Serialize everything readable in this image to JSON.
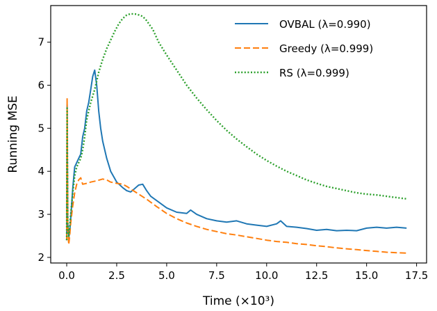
{
  "chart_data": {
    "type": "line",
    "xlabel": "Time (×10³)",
    "ylabel": "Running MSE",
    "xlim": [
      -0.8,
      18.0
    ],
    "ylim": [
      1.87,
      7.85
    ],
    "xticks": [
      "0.0",
      "2.5",
      "5.0",
      "7.5",
      "10.0",
      "12.5",
      "15.0",
      "17.5"
    ],
    "xtick_values": [
      0.0,
      2.5,
      5.0,
      7.5,
      10.0,
      12.5,
      15.0,
      17.5
    ],
    "yticks": [
      "2",
      "3",
      "4",
      "5",
      "6",
      "7"
    ],
    "ytick_values": [
      2,
      3,
      4,
      5,
      6,
      7
    ],
    "grid": false,
    "legend_position": "top-right",
    "series": [
      {
        "name": "OVBAL (λ=0.990)",
        "color": "#1f77b4",
        "dash": "solid",
        "x": [
          0.0,
          0.02,
          0.05,
          0.1,
          0.15,
          0.2,
          0.3,
          0.4,
          0.5,
          0.6,
          0.7,
          0.8,
          0.9,
          1.0,
          1.1,
          1.2,
          1.3,
          1.4,
          1.5,
          1.6,
          1.7,
          1.8,
          2.0,
          2.2,
          2.5,
          2.8,
          3.0,
          3.2,
          3.4,
          3.6,
          3.8,
          4.0,
          4.2,
          4.5,
          5.0,
          5.5,
          6.0,
          6.2,
          6.5,
          7.0,
          7.5,
          8.0,
          8.5,
          9.0,
          9.5,
          10.0,
          10.5,
          10.7,
          11.0,
          11.5,
          12.0,
          12.5,
          13.0,
          13.5,
          14.0,
          14.5,
          15.0,
          15.5,
          16.0,
          16.5,
          17.0
        ],
        "y": [
          2.4,
          5.55,
          2.8,
          2.45,
          2.6,
          2.9,
          3.6,
          4.1,
          4.2,
          4.3,
          4.4,
          4.8,
          5.0,
          5.4,
          5.6,
          5.9,
          6.2,
          6.35,
          6.0,
          5.4,
          5.0,
          4.7,
          4.3,
          4.0,
          3.75,
          3.62,
          3.55,
          3.52,
          3.6,
          3.68,
          3.7,
          3.55,
          3.42,
          3.32,
          3.15,
          3.05,
          3.02,
          3.1,
          3.0,
          2.9,
          2.85,
          2.82,
          2.85,
          2.78,
          2.75,
          2.72,
          2.78,
          2.85,
          2.72,
          2.7,
          2.67,
          2.63,
          2.65,
          2.62,
          2.63,
          2.62,
          2.68,
          2.7,
          2.68,
          2.7,
          2.68
        ]
      },
      {
        "name": "Greedy (λ=0.999)",
        "color": "#ff7f0e",
        "dash": "dashed",
        "x": [
          0.0,
          0.02,
          0.05,
          0.1,
          0.15,
          0.2,
          0.3,
          0.4,
          0.5,
          0.6,
          0.7,
          0.8,
          1.0,
          1.2,
          1.5,
          1.8,
          2.0,
          2.2,
          2.5,
          2.8,
          3.0,
          3.5,
          4.0,
          4.5,
          5.0,
          5.5,
          6.0,
          6.5,
          7.0,
          7.5,
          8.0,
          8.5,
          9.0,
          9.5,
          10.0,
          10.5,
          11.0,
          11.5,
          12.0,
          12.5,
          13.0,
          13.5,
          14.0,
          14.5,
          15.0,
          15.5,
          16.0,
          16.5,
          17.0
        ],
        "y": [
          2.4,
          5.7,
          2.7,
          2.3,
          2.5,
          2.8,
          3.2,
          3.5,
          3.7,
          3.8,
          3.85,
          3.7,
          3.72,
          3.75,
          3.78,
          3.82,
          3.8,
          3.75,
          3.72,
          3.7,
          3.65,
          3.5,
          3.35,
          3.18,
          3.02,
          2.9,
          2.8,
          2.72,
          2.65,
          2.6,
          2.55,
          2.52,
          2.48,
          2.44,
          2.4,
          2.37,
          2.35,
          2.32,
          2.3,
          2.27,
          2.25,
          2.22,
          2.2,
          2.18,
          2.16,
          2.14,
          2.12,
          2.11,
          2.1
        ]
      },
      {
        "name": "RS (λ=0.999)",
        "color": "#2ca02c",
        "dash": "dotted",
        "x": [
          0.0,
          0.02,
          0.05,
          0.1,
          0.15,
          0.2,
          0.3,
          0.4,
          0.5,
          0.6,
          0.7,
          0.8,
          0.9,
          1.0,
          1.2,
          1.4,
          1.6,
          1.8,
          2.0,
          2.2,
          2.4,
          2.6,
          2.8,
          3.0,
          3.2,
          3.5,
          3.8,
          4.0,
          4.3,
          4.6,
          5.0,
          5.5,
          6.0,
          6.5,
          7.0,
          7.5,
          8.0,
          8.5,
          9.0,
          9.5,
          10.0,
          10.5,
          11.0,
          11.5,
          12.0,
          12.5,
          13.0,
          13.5,
          14.0,
          14.5,
          15.0,
          15.5,
          16.0,
          16.5,
          17.0
        ],
        "y": [
          2.4,
          5.5,
          2.8,
          2.5,
          2.7,
          3.0,
          3.5,
          3.9,
          4.1,
          4.2,
          4.3,
          4.5,
          4.8,
          5.2,
          5.6,
          5.9,
          6.3,
          6.6,
          6.85,
          7.05,
          7.25,
          7.42,
          7.55,
          7.63,
          7.66,
          7.65,
          7.6,
          7.5,
          7.3,
          7.0,
          6.7,
          6.35,
          6.0,
          5.7,
          5.43,
          5.18,
          4.95,
          4.75,
          4.57,
          4.4,
          4.25,
          4.12,
          4.0,
          3.9,
          3.8,
          3.72,
          3.65,
          3.6,
          3.55,
          3.5,
          3.47,
          3.45,
          3.42,
          3.39,
          3.36
        ]
      }
    ]
  }
}
